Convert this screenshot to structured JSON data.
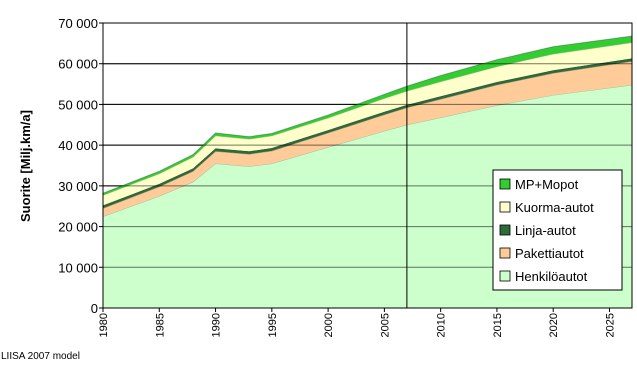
{
  "chart_data": {
    "type": "stacked-area",
    "y_label": "Suorite [Milj.km/a]",
    "footnote": "LIISA 2007 model",
    "x": [
      1980,
      1985,
      1988,
      1990,
      1993,
      1995,
      2000,
      2005,
      2007,
      2010,
      2015,
      2020,
      2027
    ],
    "xlim": [
      1980,
      2027
    ],
    "xticks": [
      1980,
      1985,
      1990,
      1995,
      2000,
      2005,
      2010,
      2015,
      2020,
      2025
    ],
    "ylim": [
      0,
      70000
    ],
    "yticks": [
      {
        "value": 0,
        "label": "0"
      },
      {
        "value": 10000,
        "label": "10 000"
      },
      {
        "value": 20000,
        "label": "20 000"
      },
      {
        "value": 30000,
        "label": "30 000"
      },
      {
        "value": 40000,
        "label": "40 000"
      },
      {
        "value": 50000,
        "label": "50 000"
      },
      {
        "value": 60000,
        "label": "60 000"
      },
      {
        "value": 70000,
        "label": "70 000"
      }
    ],
    "grid": true,
    "vline": 2007,
    "legend": "right",
    "series": [
      {
        "name": "Henkilöautot",
        "color": "#ccffcc",
        "values": [
          22500,
          27500,
          31000,
          35500,
          34800,
          35500,
          39500,
          43500,
          45000,
          46800,
          49800,
          52300,
          54800
        ]
      },
      {
        "name": "Pakettiautot",
        "color": "#ffcc99",
        "values": [
          2000,
          2300,
          2600,
          3000,
          3000,
          3100,
          3500,
          4000,
          4200,
          4500,
          5000,
          5400,
          5800
        ]
      },
      {
        "name": "Linja-autot",
        "color": "#2e6b3a",
        "values": [
          700,
          700,
          700,
          700,
          700,
          700,
          700,
          700,
          700,
          700,
          700,
          700,
          700
        ]
      },
      {
        "name": "Kuorma-autot",
        "color": "#ffffcc",
        "values": [
          2500,
          2500,
          2800,
          3100,
          3000,
          3000,
          3000,
          3300,
          3400,
          3600,
          3800,
          4000,
          3900
        ]
      },
      {
        "name": "MP+Mopot",
        "color": "#33cc33",
        "values": [
          500,
          600,
          600,
          700,
          600,
          600,
          700,
          1000,
          1200,
          1500,
          1700,
          1800,
          1600
        ]
      }
    ]
  }
}
